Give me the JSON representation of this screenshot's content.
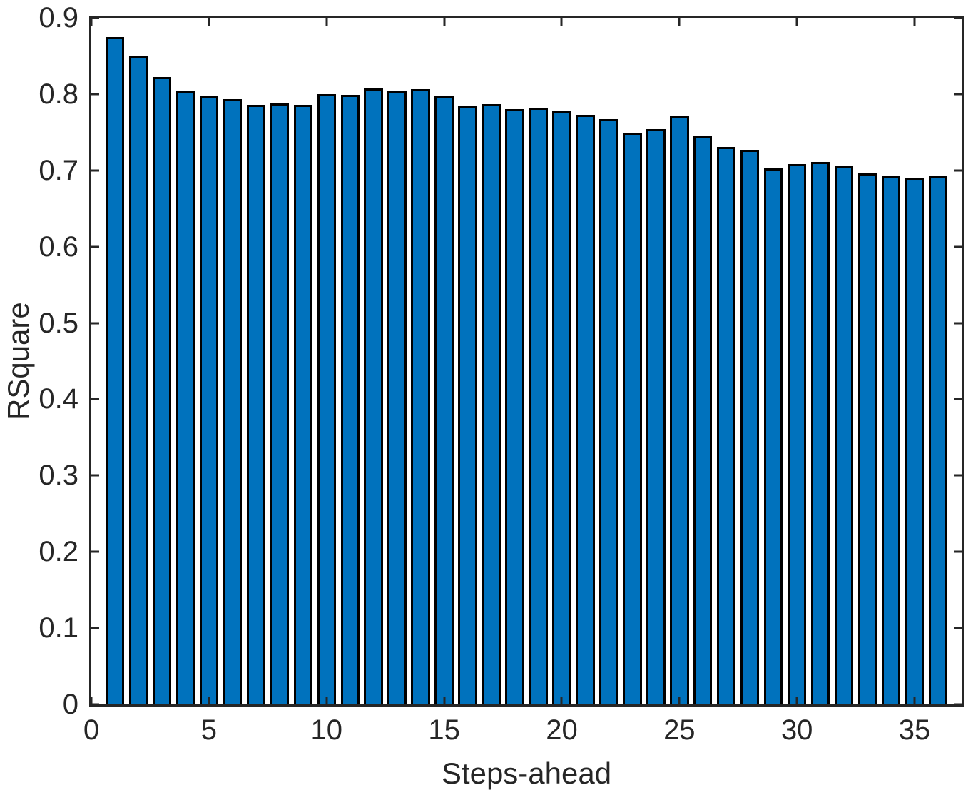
{
  "figure": {
    "background": "#ffffff"
  },
  "chart_data": {
    "type": "bar",
    "title": "",
    "xlabel": "Steps-ahead",
    "ylabel": "RSquare",
    "x": [
      1,
      2,
      3,
      4,
      5,
      6,
      7,
      8,
      9,
      10,
      11,
      12,
      13,
      14,
      15,
      16,
      17,
      18,
      19,
      20,
      21,
      22,
      23,
      24,
      25,
      26,
      27,
      28,
      29,
      30,
      31,
      32,
      33,
      34,
      35,
      36
    ],
    "values": [
      0.875,
      0.85,
      0.822,
      0.805,
      0.797,
      0.793,
      0.786,
      0.788,
      0.786,
      0.8,
      0.799,
      0.807,
      0.804,
      0.806,
      0.797,
      0.785,
      0.787,
      0.78,
      0.782,
      0.777,
      0.773,
      0.767,
      0.749,
      0.754,
      0.772,
      0.745,
      0.731,
      0.727,
      0.703,
      0.708,
      0.711,
      0.706,
      0.696,
      0.692,
      0.69,
      0.692
    ],
    "bar_width": 0.8,
    "xlim": [
      0,
      37
    ],
    "ylim": [
      0,
      0.9
    ],
    "xticks": [
      0,
      5,
      10,
      15,
      20,
      25,
      30,
      35
    ],
    "xtick_labels": [
      "0",
      "5",
      "10",
      "15",
      "20",
      "25",
      "30",
      "35"
    ],
    "yticks": [
      0,
      0.1,
      0.2,
      0.3,
      0.4,
      0.5,
      0.6,
      0.7,
      0.8,
      0.9
    ],
    "ytick_labels": [
      "0",
      "0.1",
      "0.2",
      "0.3",
      "0.4",
      "0.5",
      "0.6",
      "0.7",
      "0.8",
      "0.9"
    ],
    "grid": false,
    "legend_position": "none",
    "box": true,
    "tick_direction": "in",
    "colors": {
      "bar_fill": "#0072BD",
      "bar_edge": "#000000",
      "axis": "#262626",
      "text": "#262626"
    }
  }
}
